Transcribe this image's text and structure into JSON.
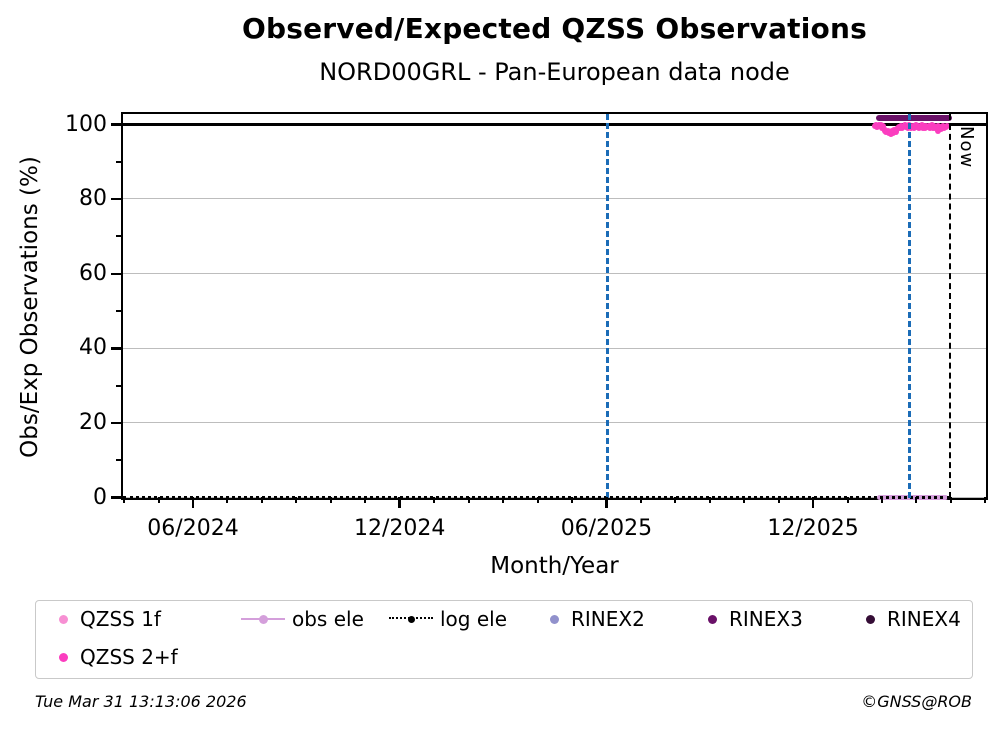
{
  "header": {
    "title": "Observed/Expected QZSS Observations",
    "subtitle": "NORD00GRL - Pan-European data node"
  },
  "footer": {
    "timestamp": "Tue Mar 31 13:13:06 2026",
    "copyright": "©GNSS@ROB"
  },
  "colors": {
    "qzss_1f": "#f78fd3",
    "qzss_2f": "#fb3dbf",
    "obs_ele": "#d49fdb",
    "log_ele": "#000000",
    "rinex2": "#9191cc",
    "rinex3": "#6a1168",
    "rinex4": "#350d36",
    "vline_blue": "#1b6cb7",
    "grid": "#bdbdbd"
  },
  "legend": {
    "items": [
      {
        "label": "QZSS 1f",
        "color": "#f78fd3",
        "marker": "dot"
      },
      {
        "label": "obs ele",
        "color": "#d49fdb",
        "marker": "dot-line"
      },
      {
        "label": "log ele",
        "color": "#000000",
        "marker": "dot-dotted-line"
      },
      {
        "label": "RINEX2",
        "color": "#9191cc",
        "marker": "dot"
      },
      {
        "label": "RINEX3",
        "color": "#6a1168",
        "marker": "dot"
      },
      {
        "label": "RINEX4",
        "color": "#350d36",
        "marker": "dot"
      },
      {
        "label": "QZSS 2+f",
        "color": "#fb3dbf",
        "marker": "dot"
      }
    ]
  },
  "chart_data": {
    "type": "scatter",
    "title": "Observed/Expected QZSS Observations",
    "subtitle": "NORD00GRL - Pan-European data node",
    "xlabel": "Month/Year",
    "ylabel": "Obs/Exp Observations (%)",
    "x_axis": {
      "unit": "months since 2024-06",
      "month_range": [
        -2.03,
        23.05
      ],
      "major_tick_months": [
        0,
        6,
        12,
        18
      ],
      "major_tick_labels": [
        "06/2024",
        "12/2024",
        "06/2025",
        "12/2025"
      ],
      "minor_tick_step_months": 1
    },
    "y_axis": {
      "major_ticks": [
        0,
        20,
        40,
        60,
        80,
        100
      ],
      "minor_ticks": [
        10,
        30,
        50,
        70,
        90
      ],
      "range": [
        -0.7,
        103.4
      ],
      "grid": true
    },
    "annotations": {
      "hline_100": {
        "value": 100,
        "color": "#000000",
        "line_width": 3
      },
      "now_label": "Now"
    },
    "vlines": [
      {
        "month": 12.05,
        "style": "dashed",
        "color": "#1b6cb7",
        "line_width": 3.5
      },
      {
        "month": 20.81,
        "style": "dashed",
        "color": "#1b6cb7",
        "line_width": 3.5
      },
      {
        "month": 21.97,
        "style": "dashed",
        "color": "#000000",
        "line_width": 2.5,
        "label": "Now"
      }
    ],
    "series": [
      {
        "name": "QZSS 2+f",
        "type": "scatter",
        "color": "#fb3dbf",
        "marker_size": 6,
        "points": [
          [
            19.8,
            99.6
          ],
          [
            19.833,
            99.9
          ],
          [
            19.866,
            99.3
          ],
          [
            19.899,
            100.0
          ],
          [
            19.932,
            99.5
          ],
          [
            19.965,
            99.8
          ],
          [
            19.998,
            99.1
          ],
          [
            20.031,
            99.6
          ],
          [
            20.064,
            98.9
          ],
          [
            20.097,
            98.4
          ],
          [
            20.13,
            97.9
          ],
          [
            20.163,
            98.2
          ],
          [
            20.196,
            97.7
          ],
          [
            20.229,
            98.0
          ],
          [
            20.262,
            97.6
          ],
          [
            20.295,
            98.3
          ],
          [
            20.328,
            97.8
          ],
          [
            20.361,
            98.5
          ],
          [
            20.394,
            98.1
          ],
          [
            20.427,
            98.7
          ],
          [
            20.46,
            99.0
          ],
          [
            20.493,
            99.4
          ],
          [
            20.526,
            99.2
          ],
          [
            20.559,
            99.7
          ],
          [
            20.592,
            99.0
          ],
          [
            20.625,
            99.5
          ],
          [
            20.658,
            99.9
          ],
          [
            20.691,
            99.3
          ],
          [
            20.724,
            99.6
          ],
          [
            20.757,
            99.1
          ],
          [
            20.79,
            99.8
          ],
          [
            20.823,
            99.4
          ],
          [
            20.856,
            99.0
          ],
          [
            20.889,
            99.7
          ],
          [
            20.922,
            99.2
          ],
          [
            20.955,
            99.5
          ],
          [
            20.988,
            99.9
          ],
          [
            21.021,
            99.3
          ],
          [
            21.054,
            99.6
          ],
          [
            21.087,
            99.0
          ],
          [
            21.12,
            99.4
          ],
          [
            21.153,
            99.8
          ],
          [
            21.186,
            99.2
          ],
          [
            21.219,
            99.5
          ],
          [
            21.252,
            99.0
          ],
          [
            21.285,
            99.7
          ],
          [
            21.318,
            99.3
          ],
          [
            21.351,
            99.6
          ],
          [
            21.384,
            99.1
          ],
          [
            21.417,
            99.4
          ],
          [
            21.45,
            99.8
          ],
          [
            21.483,
            99.2
          ],
          [
            21.516,
            99.5
          ],
          [
            21.549,
            99.0
          ],
          [
            21.582,
            99.3
          ],
          [
            21.615,
            99.6
          ],
          [
            21.63,
            98.2
          ],
          [
            21.648,
            99.1
          ],
          [
            21.681,
            99.4
          ],
          [
            21.714,
            98.9
          ],
          [
            21.747,
            99.2
          ],
          [
            21.78,
            99.5
          ],
          [
            21.813,
            99.0
          ],
          [
            21.846,
            99.3
          ],
          [
            21.879,
            99.6
          ]
        ]
      },
      {
        "name": "RINEX3",
        "type": "line",
        "color": "#6a1168",
        "line_width": 6,
        "points": [
          [
            19.82,
            101.9
          ],
          [
            22.03,
            101.9
          ]
        ]
      },
      {
        "name": "obs ele",
        "type": "line",
        "color": "#d49fdb",
        "line_width": 5,
        "points": [
          [
            19.85,
            0
          ],
          [
            21.93,
            0
          ]
        ]
      },
      {
        "name": "log ele",
        "type": "dotted_line",
        "color": "#000000",
        "line_width": 3,
        "points": [
          [
            -2.03,
            0
          ],
          [
            21.97,
            0
          ]
        ]
      }
    ]
  }
}
